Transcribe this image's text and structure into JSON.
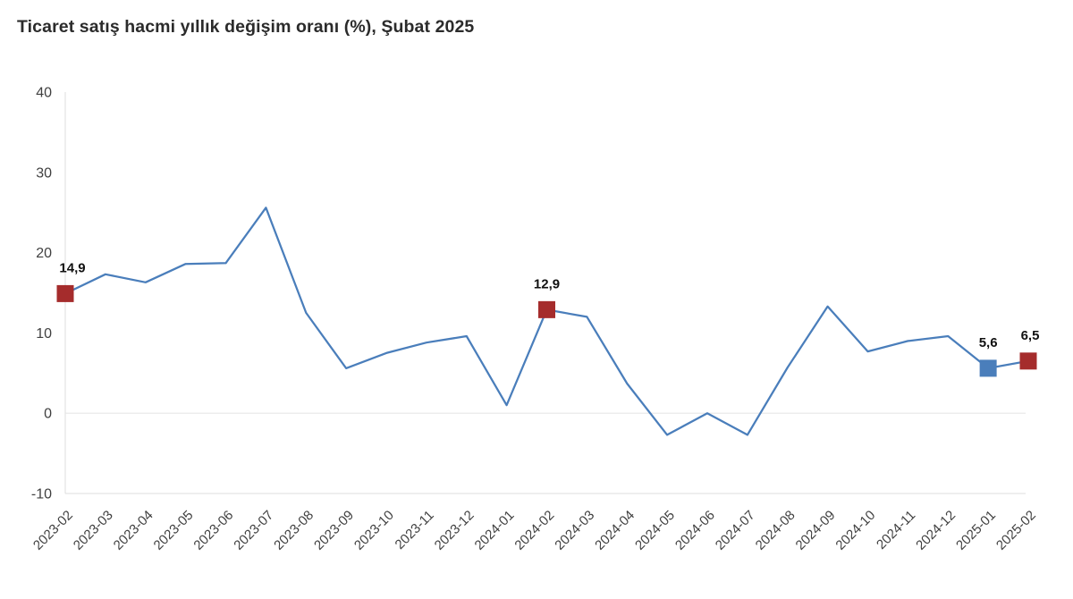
{
  "title": "Ticaret satış hacmi yıllık değişim oranı (%), Şubat 2025",
  "colors": {
    "line": "#4A7EBB",
    "marker_red": "#A52C2C",
    "marker_blue": "#4A7EBB",
    "title_text": "#2B2B2B",
    "axis_text": "#404040",
    "data_label_text": "#111111",
    "zero_gridline": "#E7E7E7",
    "axis_line": "#DCDCDC"
  },
  "chart_data": {
    "type": "line",
    "title": "Ticaret satış hacmi yıllık değişim oranı (%), Şubat 2025",
    "xlabel": "",
    "ylabel": "",
    "legend": "none",
    "grid": "horizontal gridline at 0 only",
    "ylim": [
      -10,
      40
    ],
    "yticks": [
      40,
      30,
      20,
      10,
      0,
      -10
    ],
    "categories": [
      "2023-02",
      "2023-03",
      "2023-04",
      "2023-05",
      "2023-06",
      "2023-07",
      "2023-08",
      "2023-09",
      "2023-10",
      "2023-11",
      "2023-12",
      "2024-01",
      "2024-02",
      "2024-03",
      "2024-04",
      "2024-05",
      "2024-06",
      "2024-07",
      "2024-08",
      "2024-09",
      "2024-10",
      "2024-11",
      "2024-12",
      "2025-01",
      "2025-02"
    ],
    "values": [
      14.9,
      17.3,
      16.3,
      18.6,
      18.7,
      25.6,
      12.5,
      5.6,
      7.5,
      8.8,
      9.6,
      1.0,
      12.9,
      12.0,
      3.7,
      -2.7,
      0.0,
      -2.7,
      5.7,
      13.3,
      7.7,
      9.0,
      9.6,
      5.6,
      6.5
    ],
    "highlighted_points": [
      {
        "category": "2023-02",
        "value": 14.9,
        "label": "14,9",
        "color": "#A52C2C",
        "label_dx": 8
      },
      {
        "category": "2024-02",
        "value": 12.9,
        "label": "12,9",
        "color": "#A52C2C",
        "label_dx": 0
      },
      {
        "category": "2025-01",
        "value": 5.6,
        "label": "5,6",
        "color": "#4A7EBB",
        "label_dx": 0
      },
      {
        "category": "2025-02",
        "value": 6.5,
        "label": "6,5",
        "color": "#A52C2C",
        "label_dx": 2
      }
    ]
  }
}
